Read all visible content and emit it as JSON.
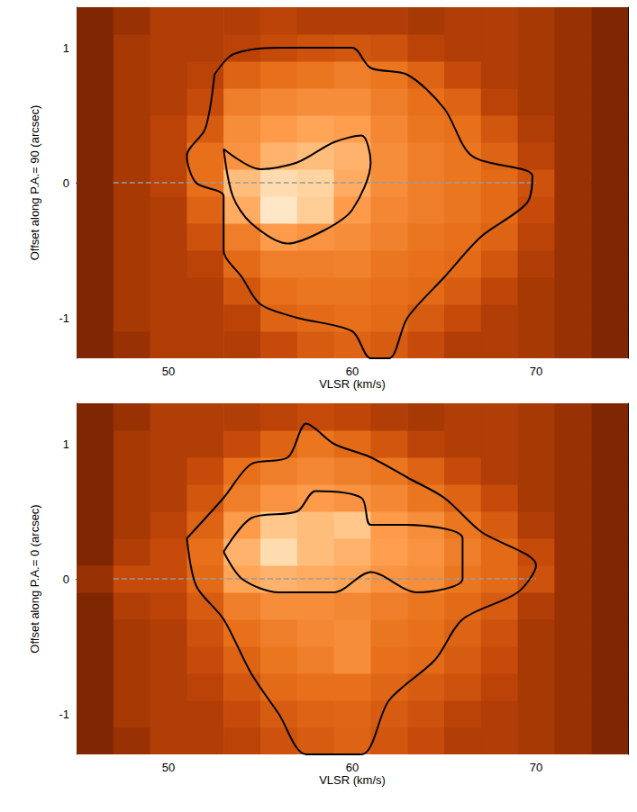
{
  "chart_data": [
    {
      "type": "heatmap",
      "xlabel": "VLSR (km/s)",
      "ylabel": "Offset along P.A.= 90 (arcsec)",
      "xlim": [
        45,
        75
      ],
      "xticks": [
        50,
        60,
        70
      ],
      "ylim": [
        -1.3,
        1.3
      ],
      "yticks": [
        -1,
        0,
        1
      ],
      "intensity_range": [
        0,
        1
      ],
      "cell_x": [
        46,
        48,
        50,
        52,
        54,
        56,
        58,
        60,
        62,
        64,
        66,
        68,
        70,
        72,
        74
      ],
      "cell_y": [
        -1.2,
        -1.0,
        -0.8,
        -0.6,
        -0.4,
        -0.2,
        0.0,
        0.2,
        0.4,
        0.6,
        0.8,
        1.0,
        1.2
      ],
      "intensity": [
        [
          0.2,
          0.25,
          0.3,
          0.3,
          0.3,
          0.35,
          0.42,
          0.45,
          0.42,
          0.35,
          0.3,
          0.3,
          0.28,
          0.25,
          0.2
        ],
        [
          0.2,
          0.28,
          0.3,
          0.3,
          0.32,
          0.45,
          0.48,
          0.5,
          0.48,
          0.42,
          0.35,
          0.3,
          0.28,
          0.25,
          0.2
        ],
        [
          0.2,
          0.28,
          0.3,
          0.3,
          0.4,
          0.5,
          0.52,
          0.52,
          0.5,
          0.48,
          0.42,
          0.33,
          0.28,
          0.25,
          0.2
        ],
        [
          0.2,
          0.28,
          0.3,
          0.32,
          0.48,
          0.55,
          0.55,
          0.56,
          0.52,
          0.5,
          0.48,
          0.4,
          0.3,
          0.25,
          0.2
        ],
        [
          0.2,
          0.28,
          0.3,
          0.38,
          0.55,
          0.65,
          0.62,
          0.6,
          0.56,
          0.52,
          0.5,
          0.45,
          0.32,
          0.25,
          0.2
        ],
        [
          0.2,
          0.28,
          0.3,
          0.45,
          0.7,
          0.9,
          0.8,
          0.65,
          0.58,
          0.55,
          0.52,
          0.48,
          0.35,
          0.25,
          0.2
        ],
        [
          0.2,
          0.28,
          0.32,
          0.5,
          0.75,
          0.85,
          0.82,
          0.7,
          0.6,
          0.55,
          0.52,
          0.48,
          0.38,
          0.25,
          0.2
        ],
        [
          0.2,
          0.28,
          0.32,
          0.5,
          0.62,
          0.72,
          0.75,
          0.72,
          0.6,
          0.55,
          0.52,
          0.45,
          0.32,
          0.25,
          0.2
        ],
        [
          0.2,
          0.28,
          0.32,
          0.42,
          0.6,
          0.65,
          0.68,
          0.66,
          0.58,
          0.52,
          0.5,
          0.4,
          0.3,
          0.25,
          0.2
        ],
        [
          0.2,
          0.28,
          0.3,
          0.35,
          0.55,
          0.58,
          0.6,
          0.6,
          0.55,
          0.5,
          0.45,
          0.32,
          0.28,
          0.25,
          0.2
        ],
        [
          0.2,
          0.28,
          0.3,
          0.32,
          0.45,
          0.5,
          0.52,
          0.55,
          0.52,
          0.45,
          0.35,
          0.3,
          0.28,
          0.25,
          0.2
        ],
        [
          0.2,
          0.28,
          0.3,
          0.3,
          0.32,
          0.35,
          0.38,
          0.4,
          0.38,
          0.32,
          0.3,
          0.3,
          0.28,
          0.25,
          0.2
        ],
        [
          0.2,
          0.25,
          0.3,
          0.3,
          0.3,
          0.32,
          0.3,
          0.3,
          0.3,
          0.28,
          0.3,
          0.3,
          0.28,
          0.25,
          0.2
        ]
      ],
      "contours": [
        [
          [
            52.5,
            0.8
          ],
          [
            53.5,
            0.95
          ],
          [
            56,
            1.0
          ],
          [
            58,
            1.0
          ],
          [
            60,
            1.0
          ],
          [
            61,
            0.85
          ],
          [
            63,
            0.8
          ],
          [
            65,
            0.55
          ],
          [
            66.5,
            0.2
          ],
          [
            69.8,
            0.05
          ],
          [
            69.5,
            -0.15
          ],
          [
            67,
            -0.4
          ],
          [
            65,
            -0.7
          ],
          [
            63,
            -1.0
          ],
          [
            62,
            -1.3
          ],
          [
            61,
            -1.3
          ],
          [
            60,
            -1.1
          ],
          [
            57,
            -1.0
          ],
          [
            55,
            -0.9
          ],
          [
            54,
            -0.7
          ],
          [
            53,
            -0.5
          ],
          [
            53,
            -0.1
          ],
          [
            51.5,
            0.0
          ],
          [
            51,
            0.2
          ],
          [
            52,
            0.4
          ],
          [
            52.5,
            0.8
          ]
        ],
        [
          [
            53,
            0.25
          ],
          [
            55,
            0.1
          ],
          [
            57,
            0.15
          ],
          [
            59,
            0.3
          ],
          [
            60.5,
            0.35
          ],
          [
            61,
            0.15
          ],
          [
            60,
            -0.2
          ],
          [
            58.5,
            -0.35
          ],
          [
            56.5,
            -0.45
          ],
          [
            54.5,
            -0.3
          ],
          [
            53.5,
            -0.1
          ],
          [
            53,
            0.25
          ]
        ]
      ],
      "reference_line": {
        "x": [
          47,
          70
        ],
        "y": 0
      }
    },
    {
      "type": "heatmap",
      "xlabel": "VLSR (km/s)",
      "ylabel": "Offset along P.A.= 0 (arcsec)",
      "xlim": [
        45,
        75
      ],
      "xticks": [
        50,
        60,
        70
      ],
      "ylim": [
        -1.3,
        1.3
      ],
      "yticks": [
        -1,
        0,
        1
      ],
      "intensity_range": [
        0,
        1
      ],
      "cell_x": [
        46,
        48,
        50,
        52,
        54,
        56,
        58,
        60,
        62,
        64,
        66,
        68,
        70,
        72,
        74
      ],
      "cell_y": [
        -1.2,
        -1.0,
        -0.8,
        -0.6,
        -0.4,
        -0.2,
        0.0,
        0.2,
        0.4,
        0.6,
        0.8,
        1.0,
        1.2
      ],
      "intensity": [
        [
          0.2,
          0.25,
          0.3,
          0.3,
          0.32,
          0.38,
          0.42,
          0.45,
          0.4,
          0.35,
          0.3,
          0.3,
          0.28,
          0.25,
          0.2
        ],
        [
          0.2,
          0.28,
          0.3,
          0.3,
          0.35,
          0.42,
          0.45,
          0.46,
          0.42,
          0.38,
          0.32,
          0.3,
          0.28,
          0.25,
          0.2
        ],
        [
          0.2,
          0.28,
          0.3,
          0.32,
          0.4,
          0.48,
          0.5,
          0.5,
          0.46,
          0.42,
          0.38,
          0.32,
          0.28,
          0.25,
          0.2
        ],
        [
          0.2,
          0.28,
          0.3,
          0.35,
          0.45,
          0.52,
          0.55,
          0.6,
          0.5,
          0.48,
          0.42,
          0.35,
          0.28,
          0.25,
          0.2
        ],
        [
          0.2,
          0.28,
          0.3,
          0.38,
          0.5,
          0.55,
          0.58,
          0.6,
          0.52,
          0.5,
          0.45,
          0.38,
          0.28,
          0.25,
          0.2
        ],
        [
          0.2,
          0.3,
          0.32,
          0.42,
          0.55,
          0.6,
          0.6,
          0.58,
          0.55,
          0.52,
          0.48,
          0.42,
          0.3,
          0.25,
          0.2
        ],
        [
          0.25,
          0.35,
          0.35,
          0.48,
          0.68,
          0.72,
          0.7,
          0.68,
          0.62,
          0.6,
          0.52,
          0.48,
          0.38,
          0.25,
          0.2
        ],
        [
          0.2,
          0.3,
          0.35,
          0.5,
          0.72,
          0.85,
          0.75,
          0.72,
          0.66,
          0.62,
          0.55,
          0.48,
          0.35,
          0.25,
          0.2
        ],
        [
          0.2,
          0.28,
          0.32,
          0.45,
          0.65,
          0.78,
          0.75,
          0.78,
          0.65,
          0.6,
          0.52,
          0.42,
          0.3,
          0.25,
          0.2
        ],
        [
          0.2,
          0.28,
          0.3,
          0.4,
          0.55,
          0.62,
          0.65,
          0.62,
          0.58,
          0.52,
          0.45,
          0.35,
          0.28,
          0.25,
          0.2
        ],
        [
          0.2,
          0.28,
          0.3,
          0.35,
          0.5,
          0.55,
          0.58,
          0.55,
          0.52,
          0.45,
          0.35,
          0.3,
          0.28,
          0.25,
          0.2
        ],
        [
          0.2,
          0.28,
          0.3,
          0.3,
          0.35,
          0.45,
          0.52,
          0.48,
          0.4,
          0.32,
          0.3,
          0.3,
          0.28,
          0.25,
          0.2
        ],
        [
          0.2,
          0.25,
          0.3,
          0.3,
          0.3,
          0.32,
          0.35,
          0.33,
          0.3,
          0.28,
          0.3,
          0.3,
          0.28,
          0.25,
          0.2
        ]
      ],
      "contours": [
        [
          [
            51,
            0.3
          ],
          [
            53,
            0.6
          ],
          [
            54.5,
            0.85
          ],
          [
            56.5,
            0.9
          ],
          [
            57.5,
            1.15
          ],
          [
            59,
            1.0
          ],
          [
            61,
            0.9
          ],
          [
            63,
            0.75
          ],
          [
            65,
            0.6
          ],
          [
            67,
            0.35
          ],
          [
            70,
            0.1
          ],
          [
            69,
            -0.1
          ],
          [
            66,
            -0.3
          ],
          [
            64.5,
            -0.6
          ],
          [
            62,
            -0.9
          ],
          [
            60.5,
            -1.3
          ],
          [
            57.5,
            -1.3
          ],
          [
            56,
            -1.0
          ],
          [
            54.5,
            -0.7
          ],
          [
            53,
            -0.3
          ],
          [
            51.5,
            -0.05
          ],
          [
            51,
            0.3
          ]
        ],
        [
          [
            53,
            0.2
          ],
          [
            54.5,
            0.45
          ],
          [
            57,
            0.5
          ],
          [
            58,
            0.65
          ],
          [
            60.5,
            0.6
          ],
          [
            61,
            0.4
          ],
          [
            63,
            0.4
          ],
          [
            66,
            0.3
          ],
          [
            66,
            0.0
          ],
          [
            63.5,
            -0.1
          ],
          [
            61,
            0.05
          ],
          [
            59,
            -0.1
          ],
          [
            56,
            -0.1
          ],
          [
            54,
            0.0
          ],
          [
            53,
            0.2
          ]
        ]
      ],
      "reference_line": {
        "x": [
          47,
          70
        ],
        "y": 0
      }
    }
  ]
}
